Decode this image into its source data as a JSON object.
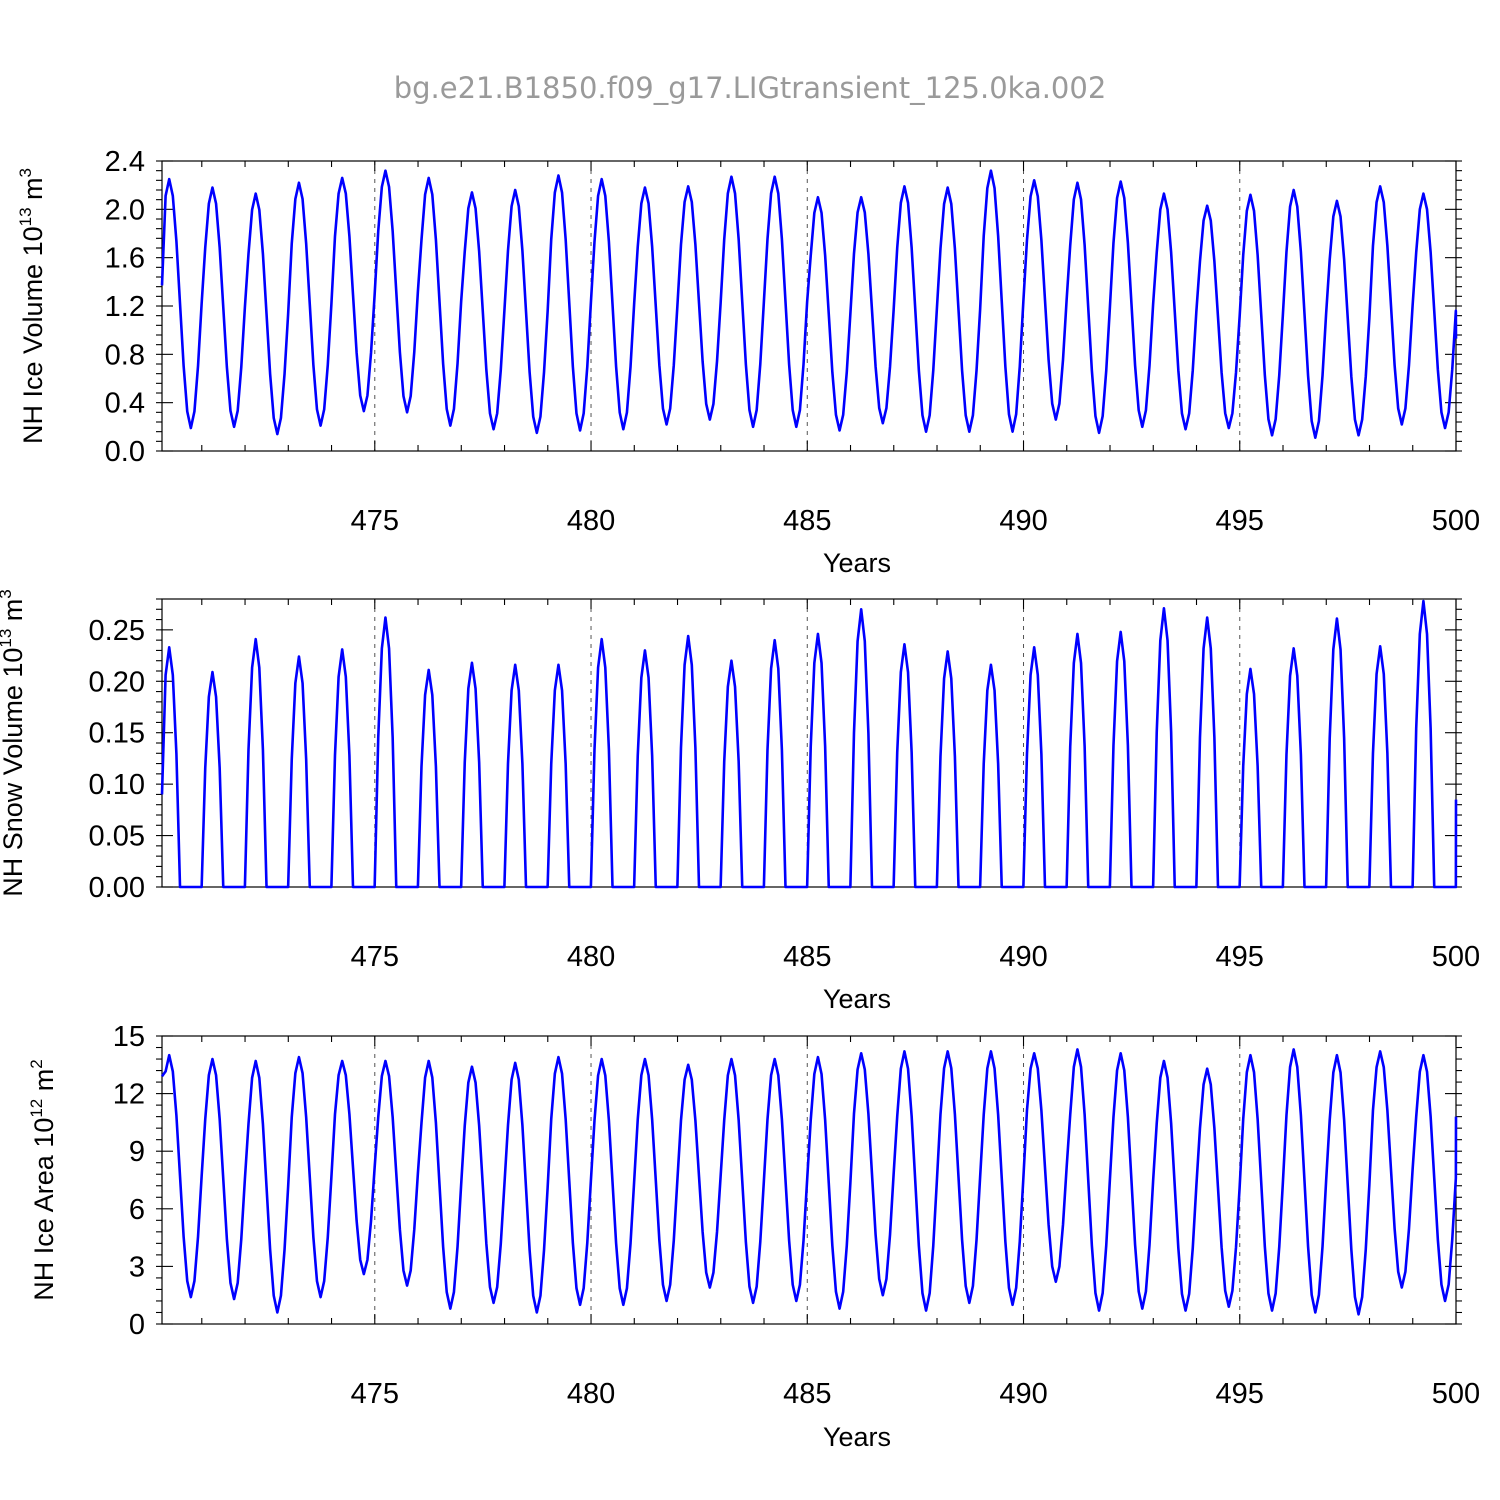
{
  "figure": {
    "title": "bg.e21.B1850.f09_g17.LIGtransient_125.0ka.002"
  },
  "chart_data": [
    {
      "type": "line",
      "title": "",
      "xlabel": "Years",
      "ylabel_main": "NH Ice Volume 10",
      "ylabel_sup": "13",
      "ylabel_unit": " m",
      "ylabel_unit_sup": "3",
      "xlim": [
        470.08,
        500.0
      ],
      "ylim": [
        0.0,
        2.4
      ],
      "xticks": [
        475,
        480,
        485,
        490,
        495,
        500
      ],
      "xtick_labels": [
        "475",
        "480",
        "485",
        "490",
        "495",
        "500"
      ],
      "yticks": [
        0.0,
        0.4,
        0.8,
        1.2,
        1.6,
        2.0,
        2.4
      ],
      "ytick_labels": [
        "0.0",
        "0.4",
        "0.8",
        "1.2",
        "1.6",
        "2.0",
        "2.4"
      ],
      "grid_x": [
        475,
        480,
        485,
        490,
        495
      ],
      "color": "#0000ff",
      "x_start": 470.08,
      "months_per_year": 12,
      "first_value": 1.37,
      "last_value": 0.93,
      "annual_max": [
        2.25,
        2.18,
        2.13,
        2.22,
        2.26,
        2.32,
        2.26,
        2.14,
        2.16,
        2.28,
        2.25,
        2.18,
        2.19,
        2.27,
        2.27,
        2.1,
        2.1,
        2.19,
        2.18,
        2.32,
        2.24,
        2.22,
        2.23,
        2.13,
        2.03,
        2.12,
        2.16,
        2.07,
        2.19,
        2.13
      ],
      "annual_min": [
        0.19,
        0.2,
        0.14,
        0.21,
        0.33,
        0.32,
        0.21,
        0.18,
        0.15,
        0.17,
        0.18,
        0.22,
        0.26,
        0.2,
        0.2,
        0.17,
        0.23,
        0.16,
        0.16,
        0.16,
        0.26,
        0.15,
        0.2,
        0.18,
        0.19,
        0.13,
        0.11,
        0.13,
        0.22,
        0.19
      ]
    },
    {
      "type": "line",
      "title": "",
      "xlabel": "Years",
      "ylabel_main": "NH Snow Volume 10",
      "ylabel_sup": "13",
      "ylabel_unit": " m",
      "ylabel_unit_sup": "3",
      "xlim": [
        470.08,
        500.0
      ],
      "ylim": [
        0.0,
        0.28
      ],
      "xticks": [
        475,
        480,
        485,
        490,
        495,
        500
      ],
      "xtick_labels": [
        "475",
        "480",
        "485",
        "490",
        "495",
        "500"
      ],
      "yticks": [
        0.0,
        0.05,
        0.1,
        0.15,
        0.2,
        0.25
      ],
      "ytick_labels": [
        "0.00",
        "0.05",
        "0.10",
        "0.15",
        "0.20",
        "0.25"
      ],
      "grid_x": [
        475,
        480,
        485,
        490,
        495
      ],
      "color": "#0000ff",
      "x_start": 470.08,
      "months_per_year": 12,
      "first_value": 0.09,
      "last_value": 0.085,
      "annual_max": [
        0.233,
        0.209,
        0.241,
        0.224,
        0.231,
        0.262,
        0.211,
        0.218,
        0.216,
        0.216,
        0.241,
        0.23,
        0.244,
        0.22,
        0.24,
        0.246,
        0.27,
        0.236,
        0.229,
        0.216,
        0.233,
        0.246,
        0.248,
        0.271,
        0.262,
        0.212,
        0.232,
        0.261,
        0.234,
        0.278
      ],
      "annual_min": [
        0.0,
        0.0,
        0.0,
        0.0,
        0.0,
        0.0,
        0.0,
        0.0,
        0.0,
        0.0,
        0.0,
        0.0,
        0.0,
        0.0,
        0.0,
        0.0,
        0.0,
        0.0,
        0.0,
        0.0,
        0.0,
        0.0,
        0.0,
        0.0,
        0.0,
        0.0,
        0.0,
        0.0,
        0.0,
        0.0
      ]
    },
    {
      "type": "line",
      "title": "",
      "xlabel": "Years",
      "ylabel_main": "NH Ice Area 10",
      "ylabel_sup": "12",
      "ylabel_unit": " m",
      "ylabel_unit_sup": "2",
      "xlim": [
        470.08,
        500.0
      ],
      "ylim": [
        0,
        15
      ],
      "xticks": [
        475,
        480,
        485,
        490,
        495,
        500
      ],
      "xtick_labels": [
        "475",
        "480",
        "485",
        "490",
        "495",
        "500"
      ],
      "yticks": [
        0,
        3,
        6,
        9,
        12,
        15
      ],
      "ytick_labels": [
        "0",
        "3",
        "6",
        "9",
        "12",
        "15"
      ],
      "grid_x": [
        475,
        480,
        485,
        490,
        495
      ],
      "color": "#0000ff",
      "x_start": 470.08,
      "months_per_year": 12,
      "first_value": 12.9,
      "last_value": 10.8,
      "annual_max": [
        14.0,
        13.8,
        13.7,
        13.9,
        13.7,
        13.7,
        13.7,
        13.4,
        13.6,
        13.9,
        13.8,
        13.8,
        13.5,
        13.8,
        13.8,
        13.9,
        14.1,
        14.2,
        14.2,
        14.2,
        14.1,
        14.3,
        14.1,
        13.7,
        13.3,
        14.0,
        14.3,
        14.0,
        14.2,
        14.0
      ],
      "annual_min": [
        1.4,
        1.3,
        0.6,
        1.4,
        2.6,
        2.0,
        0.8,
        1.1,
        0.6,
        1.0,
        1.0,
        1.2,
        1.9,
        1.1,
        1.2,
        0.8,
        1.5,
        0.7,
        1.1,
        1.0,
        2.2,
        0.7,
        0.8,
        0.7,
        0.9,
        0.7,
        0.6,
        0.5,
        1.9,
        1.2
      ]
    }
  ]
}
